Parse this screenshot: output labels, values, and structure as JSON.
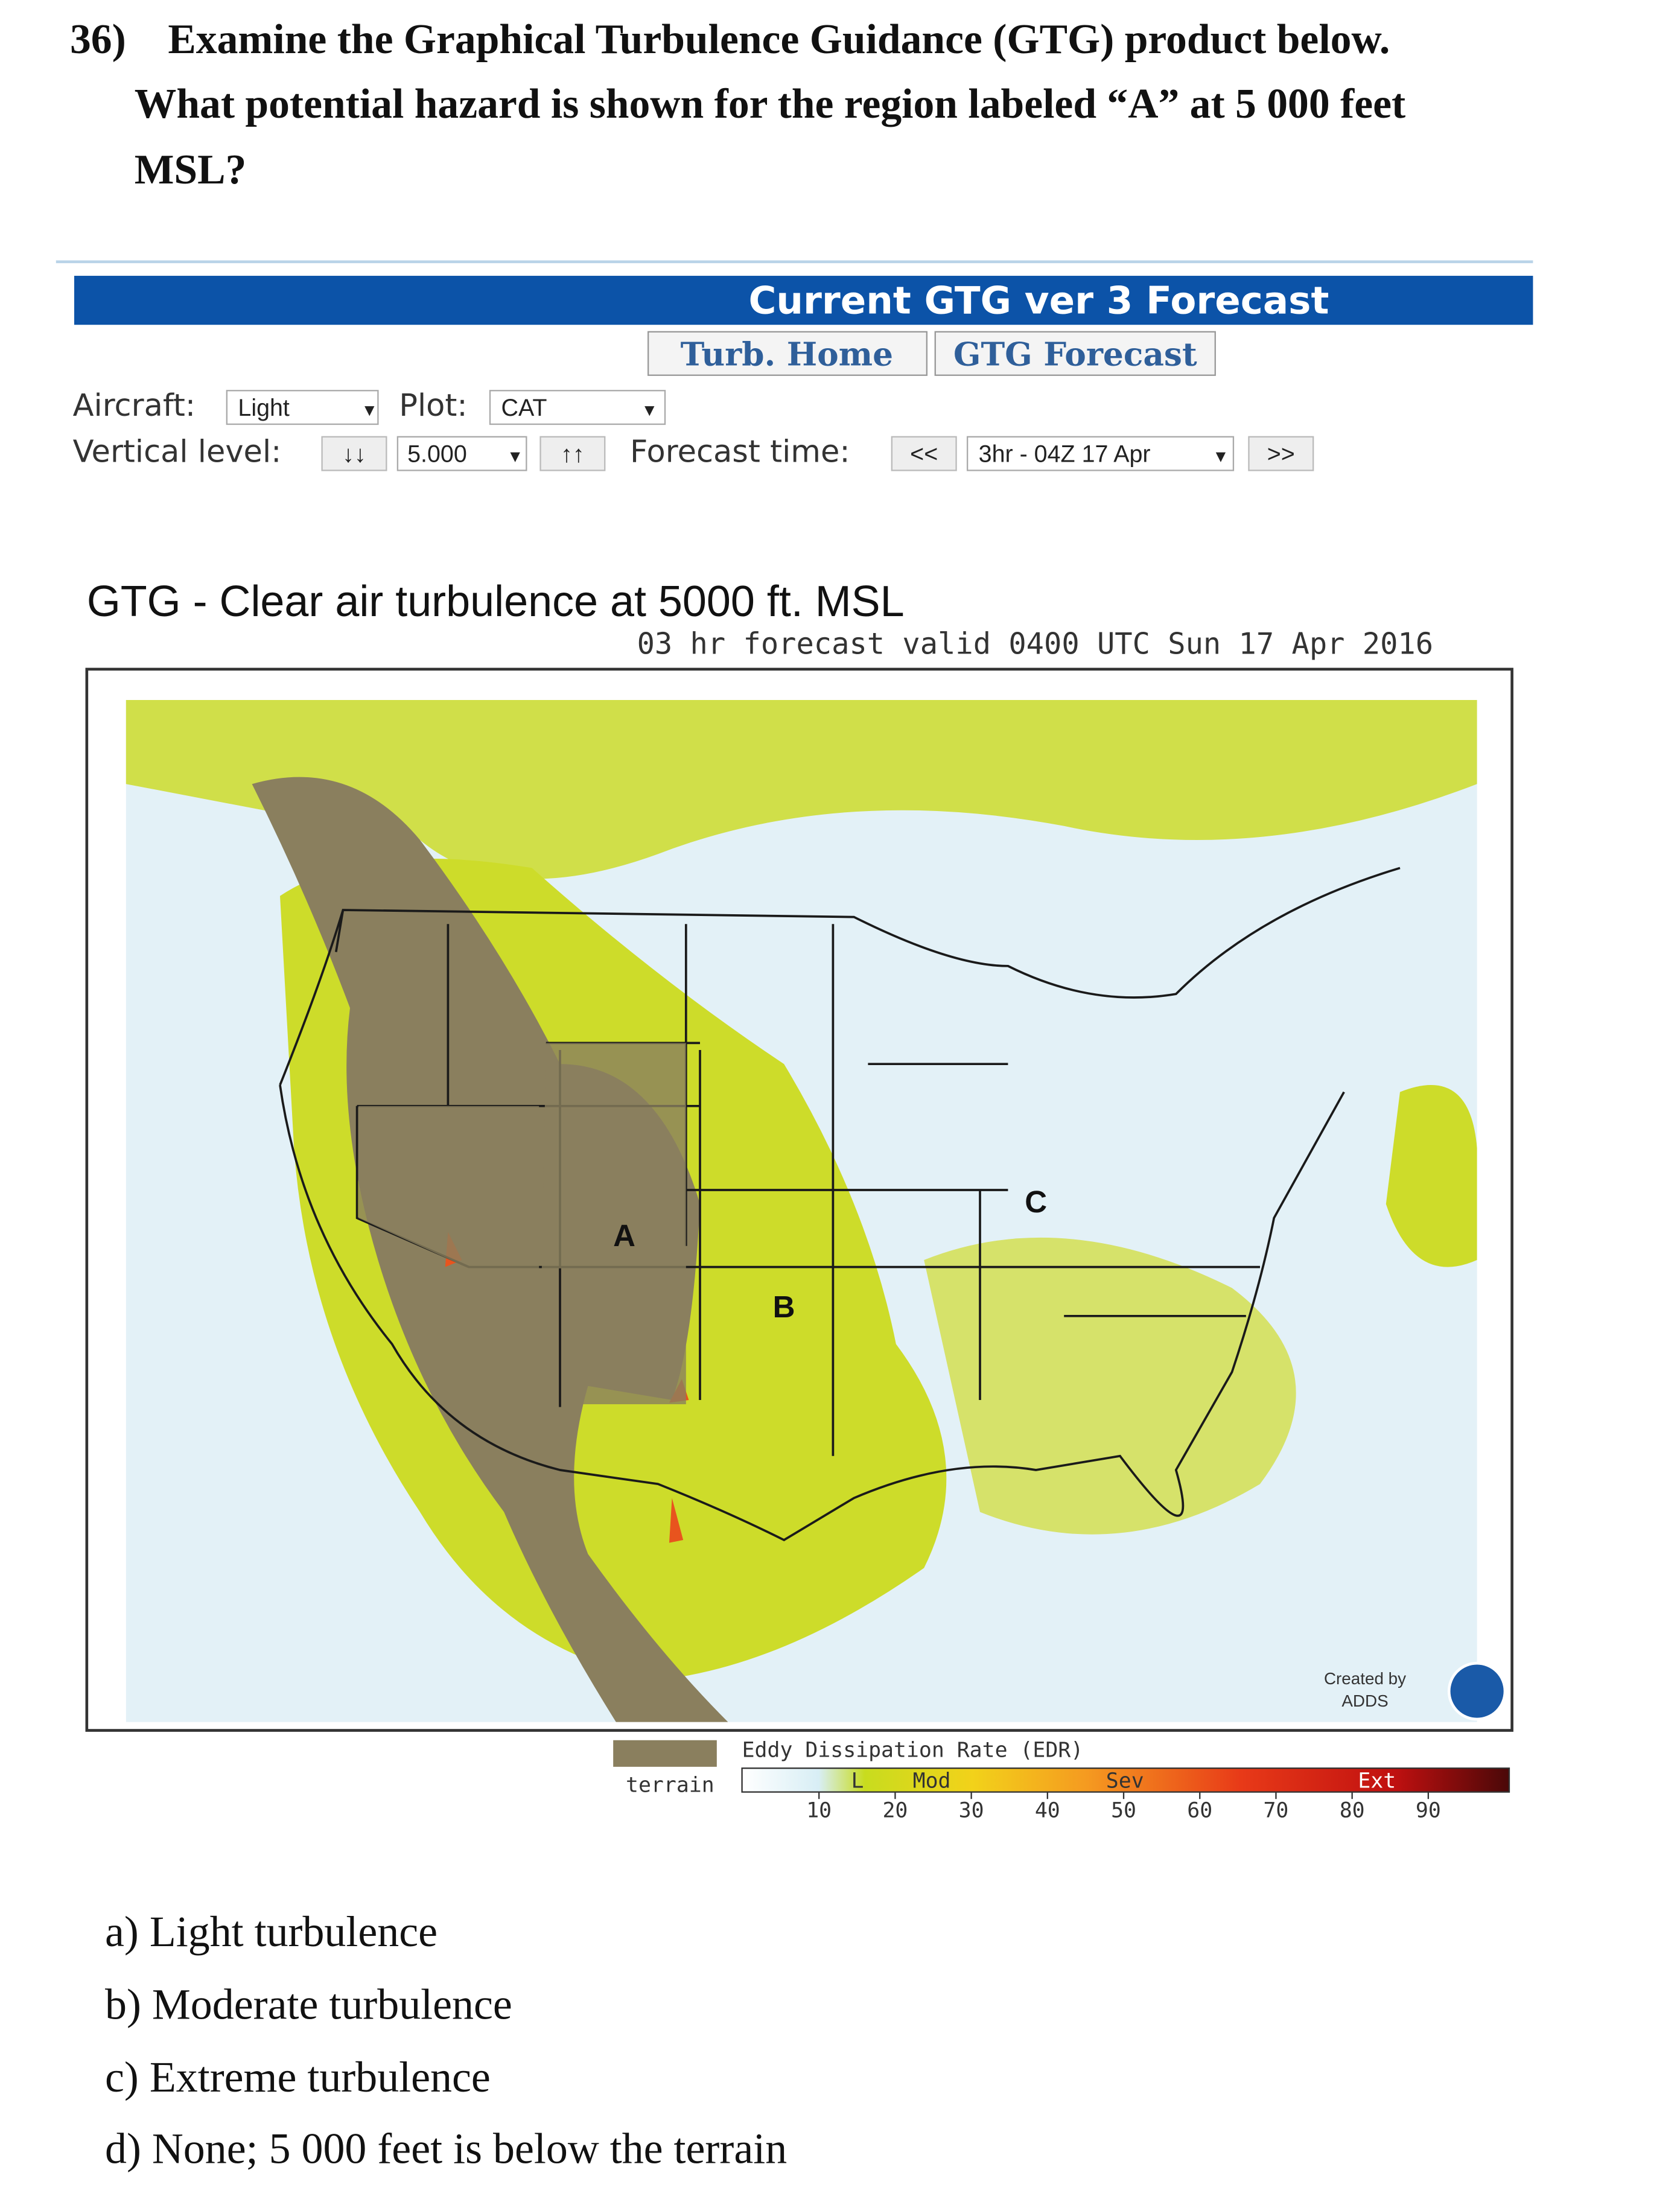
{
  "question": {
    "number": "36)",
    "lines": [
      "Examine the Graphical Turbulence Guidance (GTG) product below.",
      "What potential hazard is shown for the region labeled “A” at 5 000 feet",
      "MSL?"
    ]
  },
  "screenshot": {
    "banner": "Current GTG ver 3 Forecast",
    "nav": [
      "Turb. Home",
      "GTG Forecast"
    ],
    "controls": {
      "aircraft_label": "Aircraft:",
      "aircraft": "Light",
      "plot_label": "Plot:",
      "plot": "CAT",
      "level_label": "Vertical level:",
      "down": "↓↓",
      "level": "5.000",
      "up": "↑↑",
      "time_label": "Forecast time:",
      "prev": "<<",
      "time": "3hr - 04Z 17 Apr",
      "next": ">>"
    }
  },
  "map": {
    "title": "GTG - Clear air turbulence at 5000 ft. MSL",
    "subtitle": "03 hr forecast valid 0400 UTC Sun 17 Apr 2016",
    "regions": [
      "A",
      "B",
      "C"
    ],
    "credit": [
      "Created by",
      "ADDS"
    ]
  },
  "legend": {
    "terrain": "terrain",
    "title": "Eddy Dissipation Rate (EDR)",
    "categories": [
      "L",
      "Mod",
      "Sev",
      "Ext"
    ],
    "ticks": [
      10,
      20,
      30,
      40,
      50,
      60,
      70,
      80,
      90
    ]
  },
  "options": [
    "a) Light turbulence",
    "b) Moderate turbulence",
    "c) Extreme turbulence",
    "d) None; 5 000 feet is below the terrain"
  ]
}
